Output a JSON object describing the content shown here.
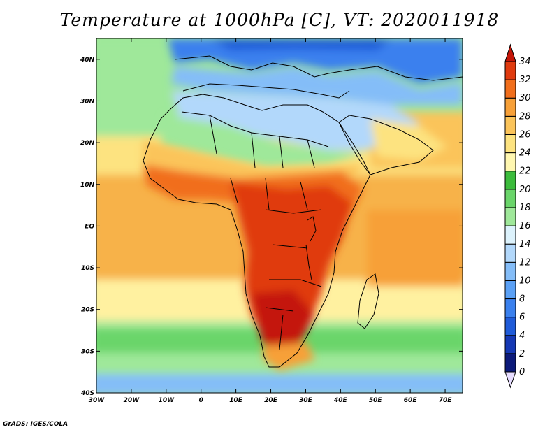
{
  "title": "Temperature at 1000hPa [C], VT: 2020011918",
  "footer": "GrADS: IGES/COLA",
  "map": {
    "variable": "Temperature at 1000hPa",
    "units": "C",
    "valid_time": "2020011918",
    "lon_range": [
      -30,
      75
    ],
    "lat_range": [
      -40,
      45
    ],
    "x_ticks": [
      "30W",
      "20W",
      "10W",
      "0",
      "10E",
      "20E",
      "30E",
      "40E",
      "50E",
      "60E",
      "70E"
    ],
    "y_ticks": [
      "40S",
      "30S",
      "20S",
      "10S",
      "EQ",
      "10N",
      "20N",
      "30N",
      "40N"
    ]
  },
  "colorbar": {
    "labels": [
      "0",
      "2",
      "4",
      "6",
      "8",
      "10",
      "12",
      "14",
      "16",
      "18",
      "20",
      "22",
      "24",
      "26",
      "28",
      "30",
      "32",
      "34"
    ],
    "colors": [
      "#e6dcff",
      "#0c1a7a",
      "#1538b4",
      "#1f5bd9",
      "#3a80ee",
      "#5aa0f5",
      "#84bdf8",
      "#b2d8fb",
      "#dcf2fc",
      "#9fe89a",
      "#6ad56a",
      "#3cbc3c",
      "#fff7b0",
      "#fde380",
      "#fbc45a",
      "#f7a038",
      "#f16e1c",
      "#e03a0e",
      "#c41608"
    ]
  },
  "palette": {
    "ocean_north": "#9fe89a",
    "ocean_tropic": "#f7b24a",
    "ocean_south": "#fff1a0",
    "ocean_far_south": "#6fd66f",
    "europe_cold": "#3a80ee",
    "sahara": "#b2d8fb",
    "sahel": "#fde380",
    "hot_core": "#e03a0e"
  }
}
